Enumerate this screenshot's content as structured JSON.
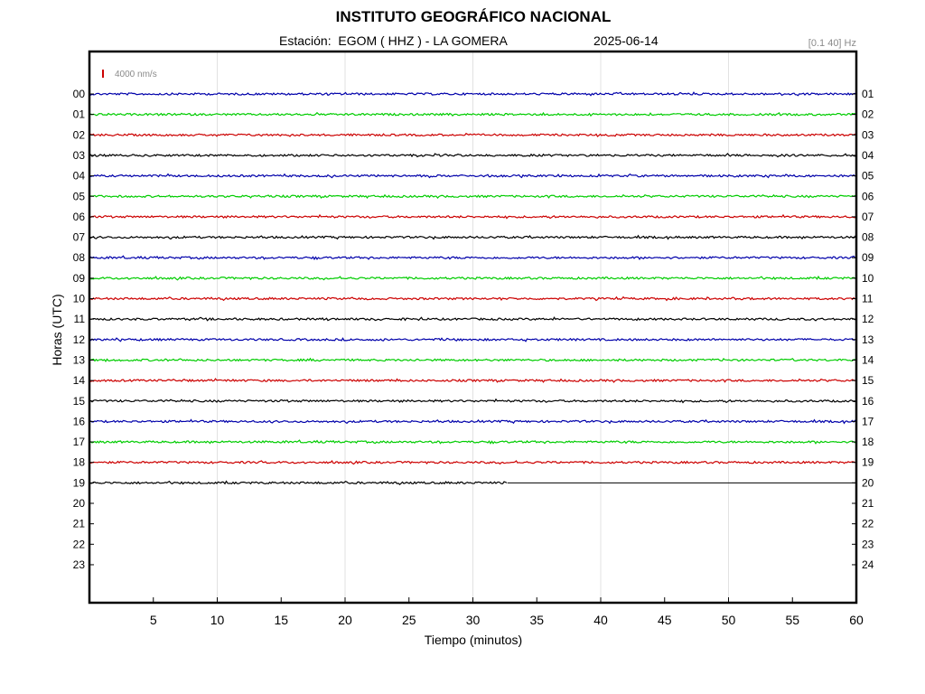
{
  "header": {
    "title": "INSTITUTO GEOGRÁFICO NACIONAL",
    "station_prefix": "Estación:",
    "station": "EGOM ( HHZ ) - LA GOMERA",
    "date": "2025-06-14",
    "filter": "[0.1 40] Hz"
  },
  "chart_data": {
    "type": "line",
    "title": "INSTITUTO GEOGRÁFICO NACIONAL",
    "xlabel": "Tiempo (minutos)",
    "ylabel": "Horas (UTC)",
    "xlim": [
      0,
      60
    ],
    "x_ticks": [
      5,
      10,
      15,
      20,
      25,
      30,
      35,
      40,
      45,
      50,
      55,
      60
    ],
    "x_gridlines": [
      10,
      20,
      30,
      40,
      50
    ],
    "left_tick_labels": [
      "00",
      "01",
      "02",
      "03",
      "04",
      "05",
      "06",
      "07",
      "08",
      "09",
      "10",
      "11",
      "12",
      "13",
      "14",
      "15",
      "16",
      "17",
      "18",
      "19",
      "20",
      "21",
      "22",
      "23"
    ],
    "right_tick_labels": [
      "01",
      "02",
      "03",
      "04",
      "05",
      "06",
      "07",
      "08",
      "09",
      "10",
      "11",
      "12",
      "13",
      "14",
      "15",
      "16",
      "17",
      "18",
      "19",
      "20",
      "21",
      "22",
      "23",
      "24"
    ],
    "amplitude_scale": "4000 nm/s",
    "scale_color": "#cc0000",
    "color_cycle": [
      "#0000aa",
      "#00cc00",
      "#cc0000",
      "#000000"
    ],
    "series": [
      {
        "hour": 0,
        "end_minute": 60
      },
      {
        "hour": 1,
        "end_minute": 60
      },
      {
        "hour": 2,
        "end_minute": 60
      },
      {
        "hour": 3,
        "end_minute": 60
      },
      {
        "hour": 4,
        "end_minute": 60
      },
      {
        "hour": 5,
        "end_minute": 60
      },
      {
        "hour": 6,
        "end_minute": 60
      },
      {
        "hour": 7,
        "end_minute": 60
      },
      {
        "hour": 8,
        "end_minute": 60
      },
      {
        "hour": 9,
        "end_minute": 60
      },
      {
        "hour": 10,
        "end_minute": 60
      },
      {
        "hour": 11,
        "end_minute": 60
      },
      {
        "hour": 12,
        "end_minute": 60
      },
      {
        "hour": 13,
        "end_minute": 60
      },
      {
        "hour": 14,
        "end_minute": 60
      },
      {
        "hour": 15,
        "end_minute": 60
      },
      {
        "hour": 16,
        "end_minute": 60
      },
      {
        "hour": 17,
        "end_minute": 60
      },
      {
        "hour": 18,
        "end_minute": 60
      },
      {
        "hour": 19,
        "end_minute": 32.7
      }
    ],
    "hour19_flatline_to": 60,
    "grid": true
  }
}
